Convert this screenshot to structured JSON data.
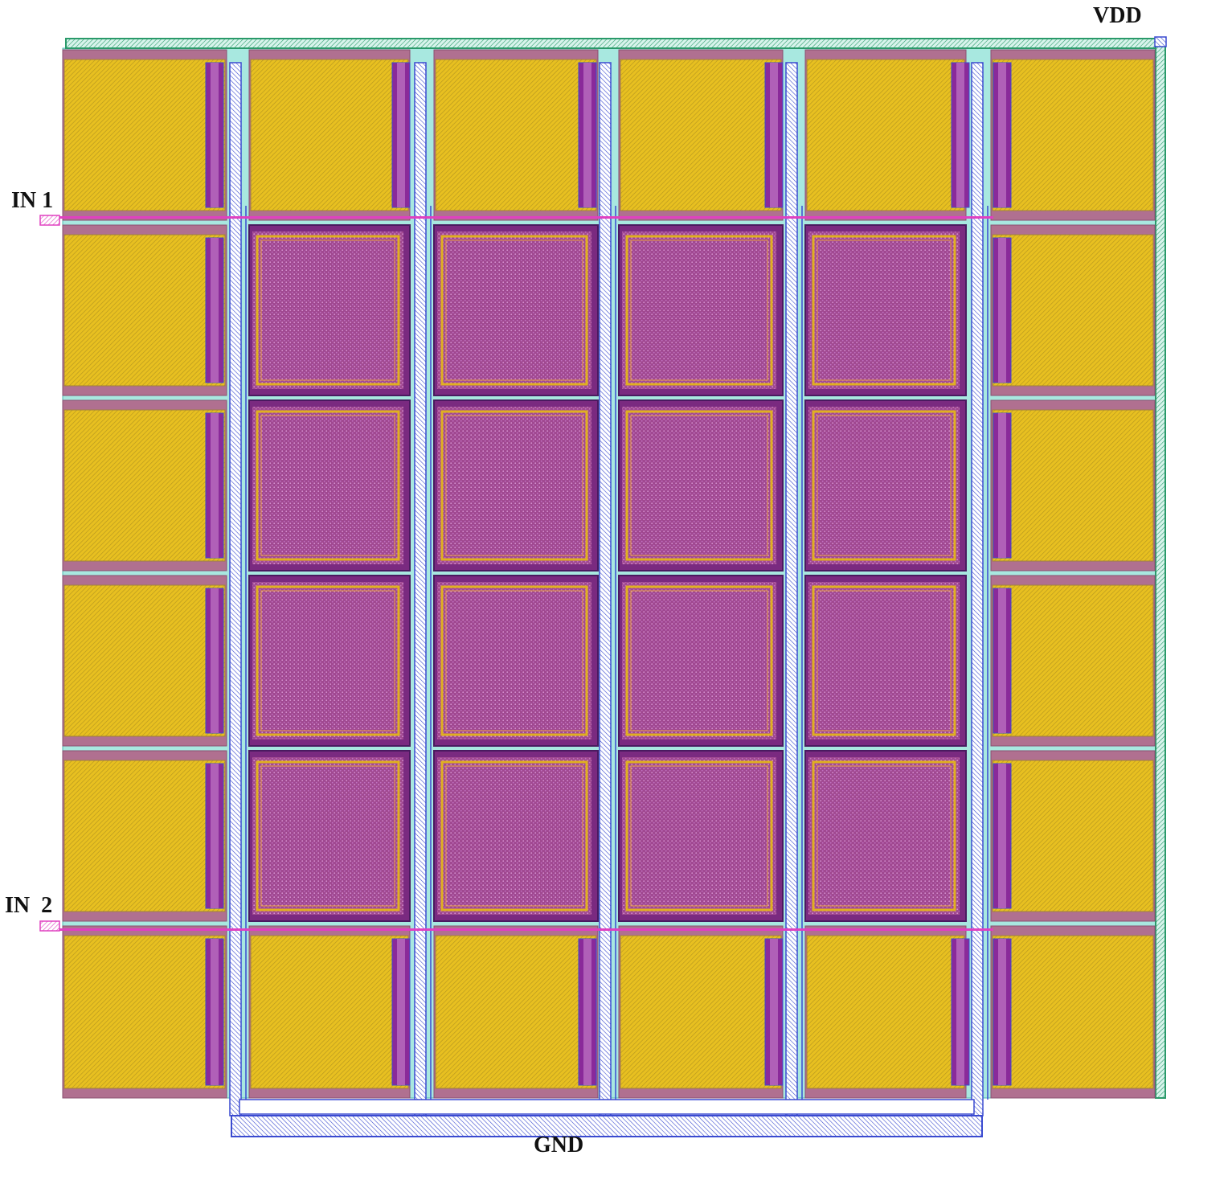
{
  "labels": {
    "vdd": "VDD",
    "in1": "IN 1",
    "in2": "IN  2",
    "gnd": "GND"
  },
  "grid": {
    "rows": 6,
    "cols": 6,
    "inner_active_cells": "rows 2-5, cols 2-5"
  },
  "colors": {
    "pad_fill": "#e8c020",
    "pad_hatch": "#b89820",
    "pad_border": "#a07090",
    "active_fill": "#a04890",
    "active_hatch": "#c878c0",
    "active_inner_ring": "#e0b020",
    "gate_poly": "#8a2a9a",
    "metal_blue": "#3a4ad0",
    "metal_cyan": "#a8e8e0",
    "rail_green": "#2a9a6a",
    "input_pink": "#e040c0",
    "label_text": "#111111"
  }
}
